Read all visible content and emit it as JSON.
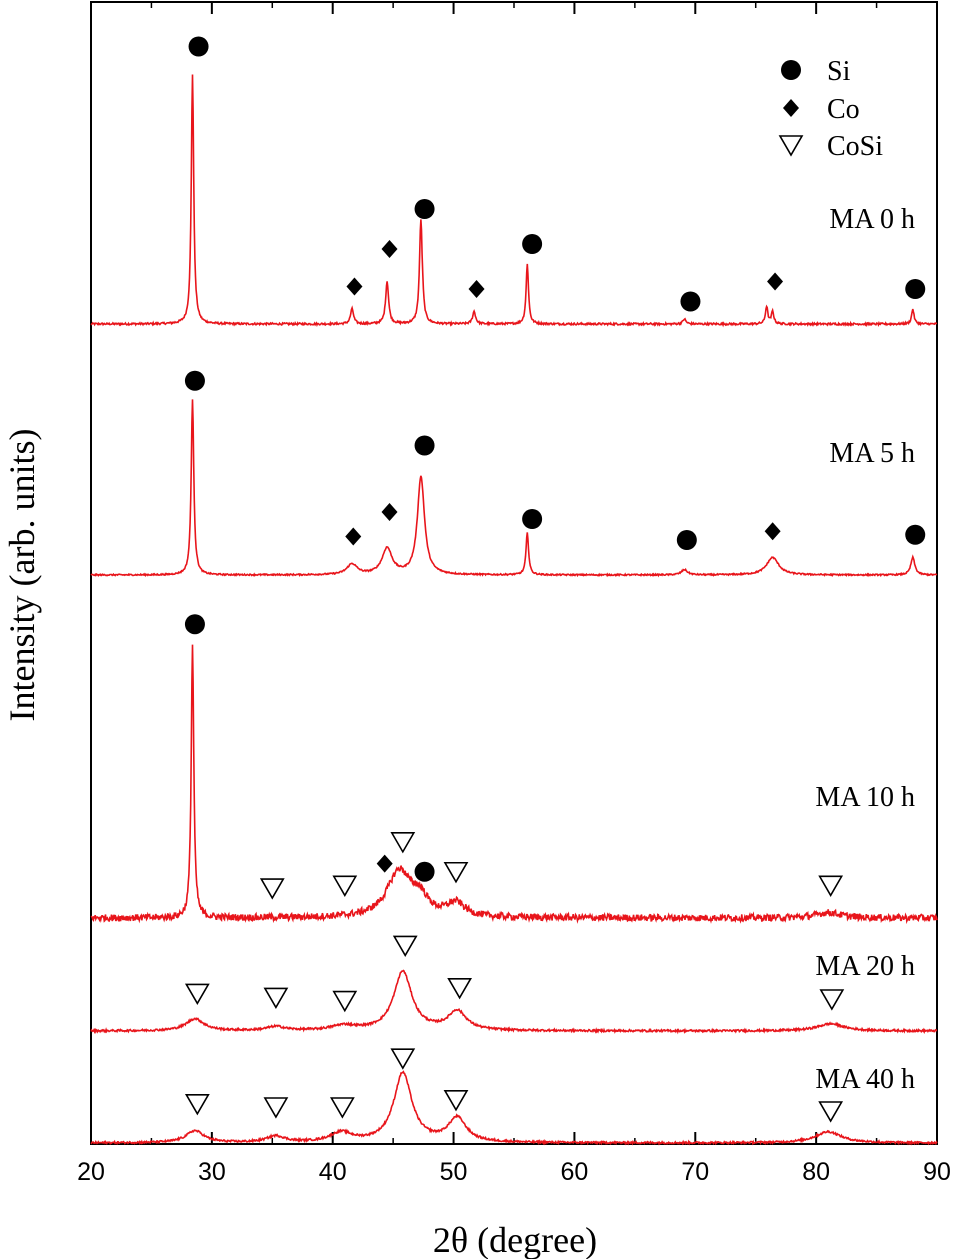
{
  "chart_data": {
    "type": "line",
    "xlabel": "2θ (degree)",
    "ylabel": "Intensity (arb. units)",
    "xlim": [
      20,
      90
    ],
    "xticks": [
      "20",
      "30",
      "40",
      "50",
      "60",
      "70",
      "80",
      "90"
    ],
    "yticks": "none",
    "grid": false,
    "legend": {
      "placement": "top-right",
      "entries": [
        {
          "label": "Si",
          "marker": "filled-circle"
        },
        {
          "label": "Co",
          "marker": "filled-diamond"
        },
        {
          "label": "CoSi",
          "marker": "open-down-triangle"
        }
      ]
    },
    "series_color": "#e8151b",
    "series": [
      {
        "name": "MA 0 h",
        "peaks": [
          {
            "x": 28.4,
            "h": 1.0,
            "w": 0.12
          },
          {
            "x": 41.6,
            "h": 0.06,
            "w": 0.15
          },
          {
            "x": 44.5,
            "h": 0.17,
            "w": 0.15
          },
          {
            "x": 47.3,
            "h": 0.42,
            "w": 0.14
          },
          {
            "x": 51.7,
            "h": 0.05,
            "w": 0.15
          },
          {
            "x": 56.1,
            "h": 0.24,
            "w": 0.12
          },
          {
            "x": 69.1,
            "h": 0.02,
            "w": 0.15
          },
          {
            "x": 75.9,
            "h": 0.07,
            "w": 0.12
          },
          {
            "x": 76.4,
            "h": 0.05,
            "w": 0.12
          },
          {
            "x": 88.0,
            "h": 0.06,
            "w": 0.12
          }
        ],
        "markers": [
          {
            "x": 28.9,
            "phase": "Si",
            "h": 1.11
          },
          {
            "x": 41.8,
            "phase": "Co",
            "h": 0.15
          },
          {
            "x": 44.7,
            "phase": "Co",
            "h": 0.3
          },
          {
            "x": 47.6,
            "phase": "Si",
            "h": 0.46
          },
          {
            "x": 51.9,
            "phase": "Co",
            "h": 0.14
          },
          {
            "x": 56.5,
            "phase": "Si",
            "h": 0.32
          },
          {
            "x": 69.6,
            "phase": "Si",
            "h": 0.09
          },
          {
            "x": 76.6,
            "phase": "Co",
            "h": 0.17
          },
          {
            "x": 88.2,
            "phase": "Si",
            "h": 0.14
          }
        ]
      },
      {
        "name": "MA 5 h",
        "peaks": [
          {
            "x": 28.4,
            "h": 1.0,
            "w": 0.13
          },
          {
            "x": 41.6,
            "h": 0.06,
            "w": 0.5
          },
          {
            "x": 44.5,
            "h": 0.15,
            "w": 0.5
          },
          {
            "x": 47.3,
            "h": 0.56,
            "w": 0.35
          },
          {
            "x": 56.1,
            "h": 0.24,
            "w": 0.13
          },
          {
            "x": 69.1,
            "h": 0.03,
            "w": 0.3
          },
          {
            "x": 76.4,
            "h": 0.1,
            "w": 0.6
          },
          {
            "x": 88.0,
            "h": 0.1,
            "w": 0.2
          }
        ],
        "markers": [
          {
            "x": 28.6,
            "phase": "Si",
            "h": 1.11
          },
          {
            "x": 41.7,
            "phase": "Co",
            "h": 0.22
          },
          {
            "x": 44.7,
            "phase": "Co",
            "h": 0.36
          },
          {
            "x": 47.6,
            "phase": "Si",
            "h": 0.74
          },
          {
            "x": 56.5,
            "phase": "Si",
            "h": 0.32
          },
          {
            "x": 69.3,
            "phase": "Si",
            "h": 0.2
          },
          {
            "x": 76.4,
            "phase": "Co",
            "h": 0.25
          },
          {
            "x": 88.2,
            "phase": "Si",
            "h": 0.23
          }
        ]
      },
      {
        "name": "MA 10 h",
        "peaks": [
          {
            "x": 28.4,
            "h": 1.0,
            "w": 0.13
          },
          {
            "x": 45.5,
            "h": 0.17,
            "w": 1.2
          },
          {
            "x": 47.2,
            "h": 0.06,
            "w": 0.8
          },
          {
            "x": 50.2,
            "h": 0.05,
            "w": 0.9
          },
          {
            "x": 81.0,
            "h": 0.02,
            "w": 1.2
          }
        ],
        "markers": [
          {
            "x": 28.6,
            "phase": "Si",
            "h": 1.08
          },
          {
            "x": 35.0,
            "phase": "CoSi",
            "h": 0.11
          },
          {
            "x": 41.0,
            "phase": "CoSi",
            "h": 0.12
          },
          {
            "x": 44.3,
            "phase": "Co",
            "h": 0.2
          },
          {
            "x": 45.8,
            "phase": "CoSi",
            "h": 0.28
          },
          {
            "x": 47.6,
            "phase": "Si",
            "h": 0.17
          },
          {
            "x": 50.2,
            "phase": "CoSi",
            "h": 0.17
          },
          {
            "x": 81.2,
            "phase": "CoSi",
            "h": 0.12
          }
        ]
      },
      {
        "name": "MA 20 h",
        "peaks": [
          {
            "x": 28.6,
            "h": 0.15,
            "w": 0.9
          },
          {
            "x": 35.3,
            "h": 0.05,
            "w": 0.9
          },
          {
            "x": 40.9,
            "h": 0.06,
            "w": 1.2
          },
          {
            "x": 45.8,
            "h": 0.74,
            "w": 0.9
          },
          {
            "x": 50.3,
            "h": 0.24,
            "w": 0.9
          },
          {
            "x": 81.2,
            "h": 0.09,
            "w": 1.3
          }
        ],
        "markers": [
          {
            "x": 28.8,
            "phase": "CoSi",
            "h": 0.47
          },
          {
            "x": 35.3,
            "phase": "CoSi",
            "h": 0.42
          },
          {
            "x": 41.0,
            "phase": "CoSi",
            "h": 0.38
          },
          {
            "x": 46.0,
            "phase": "CoSi",
            "h": 1.07
          },
          {
            "x": 50.5,
            "phase": "CoSi",
            "h": 0.54
          },
          {
            "x": 81.3,
            "phase": "CoSi",
            "h": 0.4
          }
        ]
      },
      {
        "name": "MA 40 h",
        "peaks": [
          {
            "x": 28.6,
            "h": 0.15,
            "w": 0.9
          },
          {
            "x": 35.3,
            "h": 0.08,
            "w": 0.9
          },
          {
            "x": 40.7,
            "h": 0.12,
            "w": 1.1
          },
          {
            "x": 45.8,
            "h": 0.87,
            "w": 0.9
          },
          {
            "x": 50.3,
            "h": 0.3,
            "w": 0.9
          },
          {
            "x": 81.0,
            "h": 0.14,
            "w": 1.3
          }
        ],
        "markers": [
          {
            "x": 28.8,
            "phase": "CoSi",
            "h": 0.49
          },
          {
            "x": 35.3,
            "phase": "CoSi",
            "h": 0.45
          },
          {
            "x": 40.8,
            "phase": "CoSi",
            "h": 0.45
          },
          {
            "x": 45.8,
            "phase": "CoSi",
            "h": 1.06
          },
          {
            "x": 50.2,
            "phase": "CoSi",
            "h": 0.54
          },
          {
            "x": 81.2,
            "phase": "CoSi",
            "h": 0.4
          }
        ]
      }
    ]
  }
}
